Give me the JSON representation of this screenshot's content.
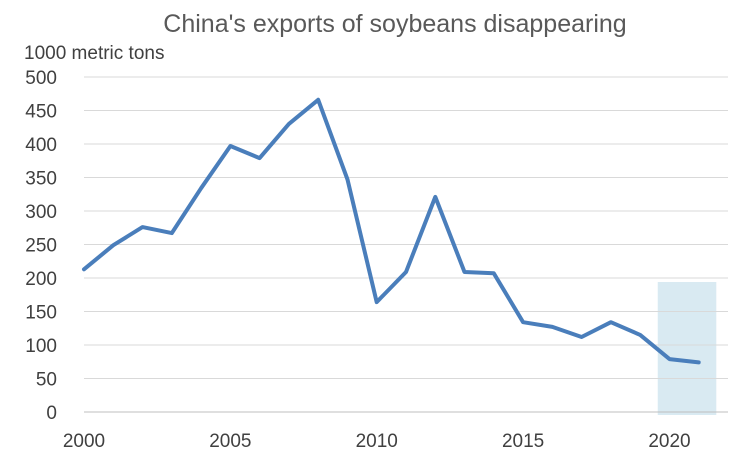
{
  "chart_data": {
    "type": "line",
    "title": "China's exports of soybeans disappearing",
    "ylabel": "1000 metric tons",
    "xlabel": "",
    "x": [
      2000,
      2001,
      2002,
      2003,
      2004,
      2005,
      2006,
      2007,
      2008,
      2009,
      2010,
      2011,
      2012,
      2013,
      2014,
      2015,
      2016,
      2017,
      2018,
      2019,
      2020,
      2021
    ],
    "series": [
      {
        "values": [
          213,
          249,
          276,
          267,
          334,
          397,
          379,
          430,
          466,
          347,
          164,
          209,
          321,
          209,
          207,
          134,
          127,
          112,
          134,
          115,
          79,
          74
        ]
      }
    ],
    "ylim": [
      0,
      500
    ],
    "yticks": [
      0,
      50,
      100,
      150,
      200,
      250,
      300,
      350,
      400,
      450,
      500
    ],
    "xticks": [
      2000,
      2005,
      2010,
      2015,
      2020
    ],
    "xlim": [
      2000,
      2022
    ],
    "grid": true,
    "highlight": {
      "from": 2019.6,
      "to": 2021.6
    },
    "colors": {
      "line": "#4a7ebb",
      "grid": "#d9d9d9",
      "axis": "#bfbfbf",
      "highlight": "#d2e6f0"
    }
  }
}
